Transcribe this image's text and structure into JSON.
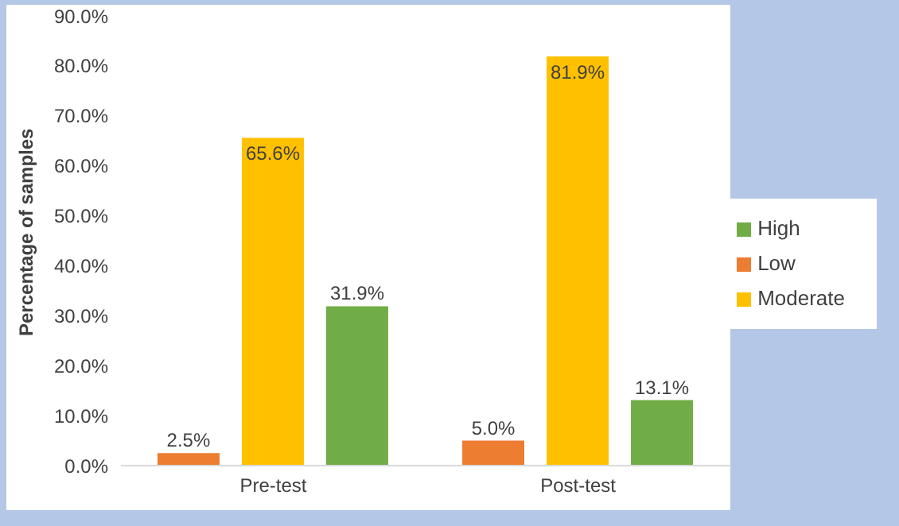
{
  "chart_data": {
    "type": "bar",
    "ylabel": "Percentage of samples",
    "categories": [
      "Pre-test",
      "Post-test"
    ],
    "series": [
      {
        "name": "Low",
        "color": "#ed7d31",
        "values": [
          2.5,
          5.0
        ],
        "value_labels": [
          "2.5%",
          "5.0%"
        ]
      },
      {
        "name": "Moderate",
        "color": "#ffc000",
        "values": [
          65.6,
          81.9
        ],
        "value_labels": [
          "65.6%",
          "81.9%"
        ]
      },
      {
        "name": "High",
        "color": "#70ad47",
        "values": [
          31.9,
          13.1
        ],
        "value_labels": [
          "31.9%",
          "13.1%"
        ]
      }
    ],
    "ylim": [
      0,
      90
    ],
    "yticks": [
      {
        "value": 0,
        "label": "0.0%"
      },
      {
        "value": 10,
        "label": "10.0%"
      },
      {
        "value": 20,
        "label": "20.0%"
      },
      {
        "value": 30,
        "label": "30.0%"
      },
      {
        "value": 40,
        "label": "40.0%"
      },
      {
        "value": 50,
        "label": "50.0%"
      },
      {
        "value": 60,
        "label": "60.0%"
      },
      {
        "value": 70,
        "label": "70.0%"
      },
      {
        "value": 80,
        "label": "80.0%"
      },
      {
        "value": 90,
        "label": "90.0%"
      }
    ],
    "grid": false,
    "legend": "right"
  }
}
